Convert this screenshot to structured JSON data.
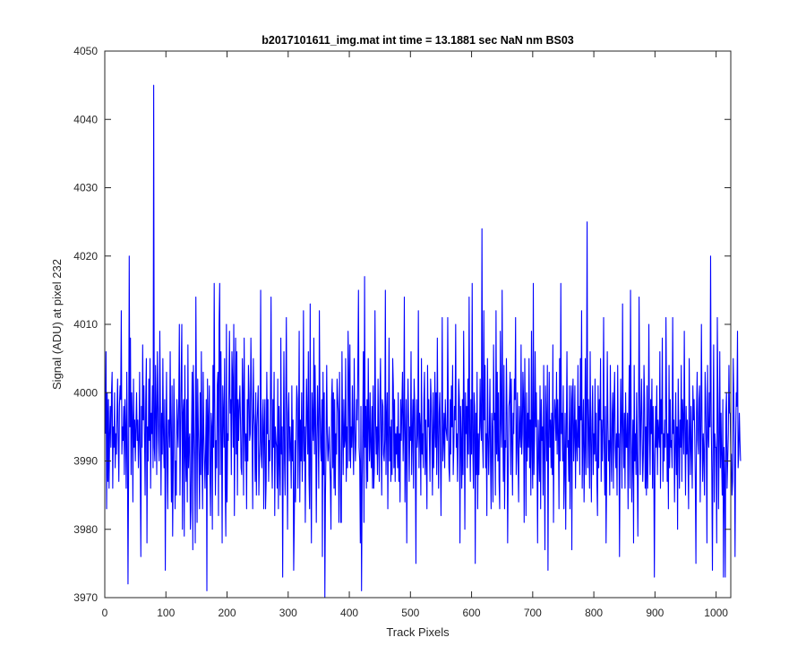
{
  "chart_data": {
    "type": "line",
    "title": "b2017101611_img.mat int time = 13.1881 sec  NaN nm BS03",
    "xlabel": "Track Pixels",
    "ylabel": "Signal (ADU) at pixel 232",
    "xlim": [
      0,
      1024
    ],
    "ylim": [
      3970,
      4050
    ],
    "xticks": [
      0,
      100,
      200,
      300,
      400,
      500,
      600,
      700,
      800,
      900,
      1000
    ],
    "yticks": [
      3970,
      3980,
      3990,
      4000,
      4010,
      4020,
      4030,
      4040,
      4050
    ],
    "grid": false,
    "legend": "none",
    "series": [
      {
        "color": "#0000ff",
        "x_start": 1,
        "x_step": 1,
        "values": [
          3994,
          4006,
          3983,
          4000,
          3987,
          3999,
          3986,
          3994,
          3998,
          3992,
          4000,
          4003,
          3986,
          3995,
          3992,
          4000,
          3989,
          3994,
          3991,
          3997,
          4002,
          3993,
          3987,
          3998,
          4001,
          3999,
          4012,
          3991,
          3995,
          3993,
          3998,
          3988,
          3999,
          3995,
          3986,
          4003,
          3992,
          3972,
          3989,
          4020,
          3995,
          4008,
          3988,
          4000,
          3996,
          3984,
          4002,
          3992,
          3996,
          3990,
          3995,
          4000,
          3993,
          3996,
          3989,
          3993,
          4003,
          3989,
          3976,
          3998,
          3992,
          4007,
          3996,
          4001,
          3994,
          3985,
          3999,
          4005,
          3978,
          3995,
          3990,
          4002,
          3993,
          4005,
          3986,
          3997,
          3994,
          4001,
          3989,
          4045,
          3992,
          3990,
          4004,
          3997,
          3988,
          4006,
          3999,
          3993,
          3990,
          4009,
          3998,
          3985,
          3997,
          3991,
          4005,
          3994,
          3989,
          3999,
          3974,
          3993,
          4003,
          3990,
          3983,
          3996,
          3996,
          3992,
          4006,
          3994,
          3984,
          4001,
          3979,
          3989,
          4002,
          3996,
          3983,
          3990,
          3985,
          3999,
          3995,
          3992,
          3999,
          4010,
          3985,
          3994,
          4003,
          4010,
          3980,
          3997,
          3999,
          3979,
          4004,
          3991,
          3987,
          3999,
          3984,
          4007,
          3989,
          3993,
          3994,
          3980,
          3983,
          3995,
          4003,
          3977,
          4004,
          3995,
          3990,
          3978,
          4014,
          3998,
          3981,
          4002,
          3995,
          3990,
          3983,
          4000,
          3988,
          4006,
          3991,
          3983,
          4003,
          3994,
          3990,
          3986,
          3992,
          3999,
          3971,
          4002,
          3988,
          3996,
          4001,
          3988,
          3982,
          3997,
          3995,
          3980,
          4004,
          3992,
          4016,
          3997,
          3985,
          3993,
          3989,
          4001,
          4003,
          3982,
          4010,
          4016,
          3988,
          4006,
          3994,
          3978,
          4001,
          3997,
          3992,
          4005,
          3986,
          3979,
          4010,
          3984,
          3994,
          3993,
          4000,
          4009,
          3997,
          3999,
          3988,
          4006,
          4002,
          3992,
          4010,
          3982,
          3996,
          4008,
          3991,
          4006,
          3985,
          3999,
          3993,
          3998,
          4001,
          3996,
          3989,
          3988,
          4005,
          4000,
          3985,
          4008,
          3995,
          3990,
          3994,
          3983,
          3999,
          3990,
          4004,
          4000,
          3993,
          3994,
          4008,
          4000,
          3993,
          3983,
          4005,
          3997,
          3995,
          3987,
          4000,
          3985,
          3995,
          3998,
          4001,
          3985,
          3990,
          3993,
          4015,
          3991,
          3989,
          3996,
          3999,
          3983,
          3995,
          3999,
          3983,
          3987,
          4003,
          3994,
          3999,
          3987,
          3993,
          3990,
          3999,
          4014,
          3991,
          3986,
          3999,
          3992,
          4003,
          3982,
          3995,
          3993,
          3992,
          3986,
          4002,
          3983,
          3998,
          3990,
          3985,
          4008,
          3991,
          3995,
          3973,
          3993,
          4006,
          3990,
          3985,
          3999,
          4011,
          3992,
          3980,
          3997,
          4000,
          3990,
          3995,
          3992,
          3986,
          4001,
          3990,
          3996,
          3974,
          3981,
          3993,
          3984,
          3994,
          4001,
          3999,
          3986,
          3994,
          4009,
          3984,
          3996,
          3990,
          4000,
          3987,
          3993,
          4012,
          3990,
          3995,
          3981,
          3993,
          4002,
          3996,
          3991,
          4006,
          3988,
          3983,
          4013,
          3989,
          3978,
          4000,
          3996,
          3993,
          4008,
          3991,
          4004,
          3995,
          3981,
          3993,
          4001,
          3995,
          3986,
          4012,
          3998,
          3992,
          3990,
          3999,
          3976,
          4003,
          3988,
          4000,
          3970,
          3985,
          3993,
          4004,
          3994,
          3990,
          3992,
          3995,
          3990,
          3987,
          3980,
          3999,
          4002,
          3989,
          4000,
          3986,
          3999,
          3985,
          3994,
          3991,
          4002,
          3999,
          3997,
          3981,
          4003,
          3992,
          3981,
          3981,
          4006,
          3995,
          3988,
          3999,
          3992,
          3993,
          4005,
          3987,
          3995,
          3989,
          4009,
          4003,
          3990,
          4007,
          3989,
          3995,
          3992,
          4001,
          3993,
          3988,
          4005,
          3995,
          3990,
          3993,
          3999,
          3996,
          4004,
          4015,
          3992,
          3990,
          3978,
          3998,
          3971,
          3987,
          3995,
          4006,
          3981,
          4017,
          3992,
          3998,
          3986,
          3999,
          3987,
          4005,
          3995,
          3990,
          4000,
          3992,
          3989,
          3998,
          3986,
          4001,
          3986,
          3989,
          4012,
          3996,
          3991,
          3995,
          3988,
          4002,
          3993,
          3987,
          3999,
          4005,
          3994,
          3985,
          3999,
          3998,
          3991,
          3990,
          3993,
          4015,
          3988,
          3996,
          4000,
          3983,
          3994,
          4008,
          3990,
          3995,
          3987,
          3996,
          3988,
          4005,
          4001,
          3989,
          3999,
          3987,
          3994,
          3991,
          3995,
          3989,
          4000,
          3987,
          3994,
          3984,
          3999,
          3993,
          3998,
          4003,
          3990,
          3995,
          4014,
          3984,
          3992,
          3999,
          3978,
          3994,
          4002,
          3996,
          3987,
          3995,
          3993,
          4006,
          3988,
          3994,
          3999,
          3986,
          4002,
          3998,
          3990,
          3975,
          3999,
          3992,
          3994,
          4012,
          3989,
          3997,
          3995,
          3985,
          4005,
          3991,
          3994,
          3989,
          3999,
          4003,
          3988,
          3996,
          3990,
          3983,
          4004,
          3995,
          3999,
          3993,
          3987,
          4002,
          3999,
          3993,
          3985,
          4000,
          3989,
          3994,
          4003,
          3992,
          4000,
          3988,
          4008,
          3994,
          3986,
          3997,
          4000,
          3992,
          3982,
          3995,
          4011,
          3990,
          3993,
          3997,
          3989,
          3999,
          3995,
          3994,
          3993,
          4011,
          3996,
          3989,
          3987,
          3999,
          3991,
          4001,
          3995,
          4004,
          3988,
          3992,
          3998,
          3996,
          4010,
          3992,
          3994,
          3987,
          3995,
          4002,
          3999,
          3978,
          3998,
          3993,
          3986,
          3999,
          3988,
          4009,
          3997,
          3980,
          4000,
          3994,
          3998,
          3989,
          4002,
          3991,
          4014,
          3994,
          3987,
          3999,
          3991,
          4016,
          3992,
          3986,
          4000,
          3998,
          3975,
          3997,
          3988,
          4003,
          3983,
          3994,
          3988,
          3994,
          4002,
          3995,
          3993,
          4024,
          3993,
          3989,
          4012,
          3996,
          4004,
          3989,
          3994,
          3982,
          4005,
          3994,
          3988,
          3994,
          4002,
          3990,
          3983,
          3997,
          3994,
          3984,
          4007,
          3996,
          3997,
          3985,
          4012,
          3991,
          4003,
          3990,
          4000,
          3987,
          3983,
          4009,
          3996,
          3992,
          4015,
          3996,
          3987,
          4004,
          3983,
          3993,
          3992,
          4005,
          3997,
          3978,
          3989,
          3998,
          3999,
          4003,
          3988,
          4002,
          3993,
          3985,
          3997,
          3994,
          4002,
          3999,
          4011,
          3988,
          3992,
          4000,
          3990,
          3984,
          3998,
          3994,
          3992,
          4007,
          3991,
          3994,
          4003,
          3999,
          3981,
          4005,
          3995,
          3982,
          4000,
          3990,
          3997,
          3992,
          4005,
          3989,
          3996,
          3985,
          4009,
          3992,
          3986,
          4016,
          3988,
          3993,
          4006,
          3995,
          4000,
          3991,
          3978,
          3996,
          3992,
          3987,
          4001,
          3983,
          3999,
          3993,
          3995,
          3985,
          4004,
          3991,
          3977,
          4001,
          3996,
          3990,
          4004,
          3974,
          3994,
          4003,
          3992,
          3996,
          3989,
          3997,
          3988,
          4007,
          3981,
          3994,
          3999,
          3997,
          3993,
          4003,
          3991,
          3999,
          3994,
          3983,
          4005,
          3990,
          4016,
          3994,
          3997,
          3990,
          4001,
          3983,
          3989,
          3997,
          3980,
          3994,
          4006,
          3992,
          3993,
          3987,
          4001,
          3983,
          3994,
          4001,
          3977,
          3999,
          4002,
          3990,
          3994,
          4001,
          3986,
          3996,
          3993,
          3990,
          4004,
          3992,
          3998,
          3988,
          4005,
          3996,
          4012,
          3986,
          3994,
          3999,
          3984,
          3991,
          4005,
          3988,
          3998,
          4025,
          3989,
          3999,
          3994,
          3986,
          4006,
          3993,
          3984,
          3996,
          4001,
          3988,
          3994,
          3991,
          4002,
          3990,
          3997,
          3987,
          3982,
          4001,
          3989,
          3999,
          3996,
          4005,
          3987,
          3996,
          3990,
          3995,
          4011,
          3992,
          3985,
          3998,
          3978,
          3988,
          4006,
          3996,
          3990,
          3993,
          3985,
          4004,
          3992,
          3987,
          3997,
          4000,
          3986,
          3998,
          4003,
          3992,
          3989,
          3994,
          3985,
          4004,
          3992,
          3994,
          3976,
          3993,
          4002,
          3995,
          3986,
          4013,
          3995,
          3989,
          3997,
          3986,
          4000,
          3992,
          3992,
          3997,
          3983,
          3996,
          4004,
          3986,
          4015,
          3998,
          3984,
          3991,
          3996,
          3978,
          4004,
          3990,
          3994,
          3988,
          4000,
          3990,
          3979,
          3992,
          4014,
          3999,
          3988,
          3997,
          4002,
          3994,
          3987,
          3991,
          4004,
          3999,
          3986,
          3995,
          3985,
          4001,
          3986,
          3993,
          4010,
          3996,
          3988,
          3999,
          3994,
          4002,
          3986,
          3998,
          3991,
          3973,
          3989,
          3998,
          3992,
          4001,
          3988,
          3996,
          3994,
          3992,
          4006,
          3986,
          3999,
          3994,
          4008,
          3987,
          3994,
          3990,
          3996,
          3992,
          4011,
          3998,
          3987,
          3994,
          3983,
          4004,
          3989,
          3999,
          3992,
          3993,
          3989,
          4011,
          3994,
          3996,
          3984,
          3992,
          4000,
          3988,
          3995,
          3980,
          4002,
          3994,
          3986,
          3996,
          3992,
          4004,
          3987,
          3999,
          3996,
          3991,
          4009,
          3995,
          3985,
          3998,
          3991,
          3996,
          3990,
          3983,
          4005,
          3994,
          3988,
          3998,
          3992,
          3986,
          4001,
          3996,
          3999,
          3994,
          3987,
          3975,
          3997,
          4003,
          3993,
          3991,
          3999,
          4001,
          3984,
          3994,
          4010,
          3995,
          3987,
          3994,
          3991,
          3985,
          4003,
          3999,
          3992,
          3978,
          4004,
          3994,
          3992,
          4000,
          3995,
          4020,
          3996,
          3988,
          3974,
          3995,
          4007,
          3984,
          3994,
          3992,
          3992,
          3978,
          4011,
          3999,
          3983,
          3993,
          4006,
          3989,
          3997,
          3990,
          3985,
          3999,
          3973,
          3992,
          3988,
          3973,
          3997,
          4000,
          3986,
          3990,
          3994,
          4004,
          3997,
          3997,
          3991,
          3991,
          3985,
          3987,
          4005,
          3999,
          3992,
          3976,
          3993,
          4000,
          3998,
          4009,
          3989,
          3991,
          3997,
          3993,
          3990
        ]
      }
    ]
  }
}
